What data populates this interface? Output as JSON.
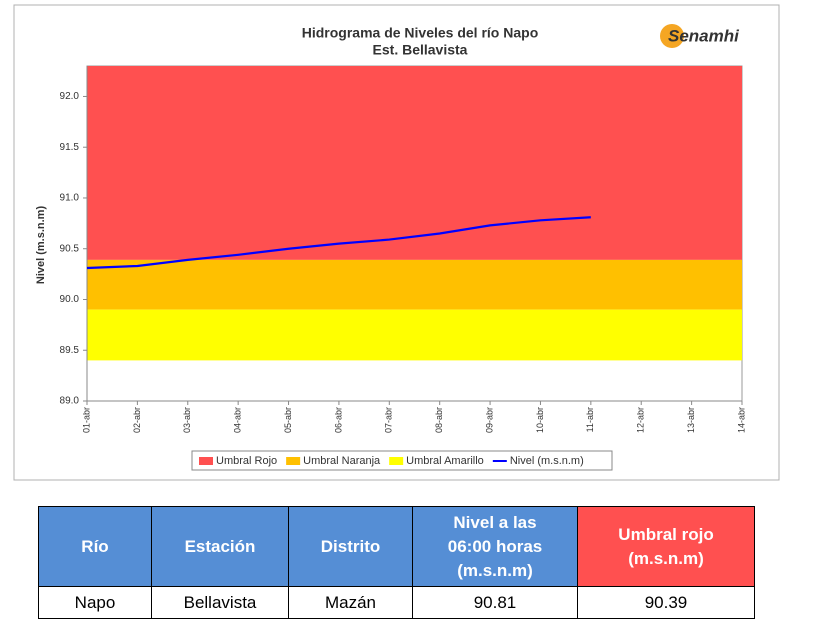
{
  "chart_data": {
    "type": "line",
    "title": "Hidrograma de Niveles del río Napo",
    "subtitle": "Est. Bellavista",
    "logo": "Senamhi",
    "ylabel": "Nivel (m.s.n.m)",
    "categories": [
      "01-abr",
      "02-abr",
      "03-abr",
      "04-abr",
      "05-abr",
      "06-abr",
      "07-abr",
      "08-abr",
      "09-abr",
      "10-abr",
      "11-abr",
      "12-abr",
      "13-abr",
      "14-abr"
    ],
    "bands": [
      {
        "name": "Umbral Rojo",
        "color": "#ff5050",
        "low": 90.39
      },
      {
        "name": "Umbral Naranja",
        "color": "#ffc000",
        "low": 89.9
      },
      {
        "name": "Umbral Amarillo",
        "color": "#ffff00",
        "low": 89.4
      }
    ],
    "series": [
      {
        "name": "Nivel (m.s.n.m)",
        "color": "#0000ff",
        "values": [
          90.31,
          90.33,
          90.39,
          90.44,
          90.5,
          90.55,
          90.59,
          90.65,
          90.73,
          90.78,
          90.81,
          null,
          null,
          null
        ]
      }
    ],
    "ylim": [
      89.0,
      92.3
    ],
    "yticks": [
      {
        "value": 89.0,
        "label": "89.0"
      },
      {
        "value": 89.5,
        "label": "89.5"
      },
      {
        "value": 90.0,
        "label": "90.0"
      },
      {
        "value": 90.5,
        "label": "90.5"
      },
      {
        "value": 91.0,
        "label": "91.0"
      },
      {
        "value": 91.5,
        "label": "91.5"
      },
      {
        "value": 92.0,
        "label": "92.0"
      }
    ]
  },
  "table": {
    "header": [
      "Río",
      "Estación",
      "Distrito",
      "Nivel a las 06:00 horas (m.s.n.m)",
      "Umbral rojo (m.s.n.m)"
    ],
    "rows": [
      [
        "Napo",
        "Bellavista",
        "Mazán",
        "90.81",
        "90.39"
      ]
    ]
  }
}
